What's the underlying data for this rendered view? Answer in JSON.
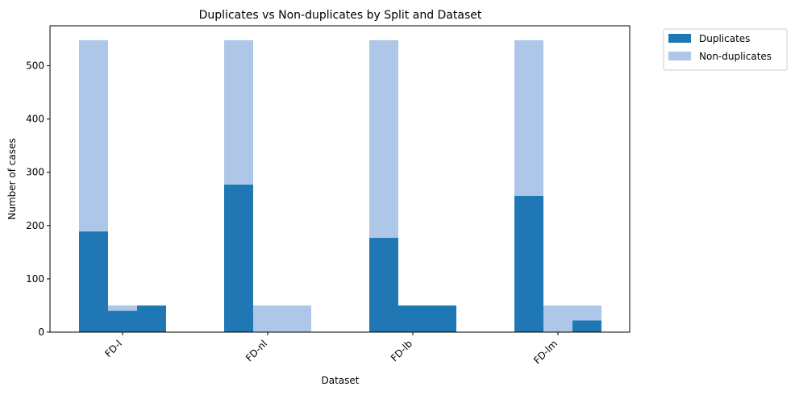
{
  "chart_data": {
    "type": "bar",
    "stacked": true,
    "title": "Duplicates vs Non-duplicates by Split and Dataset",
    "xlabel": "Dataset",
    "ylabel": "Number of cases",
    "categories": [
      "FD-l",
      "FD-nl",
      "FD-lb",
      "FD-lm"
    ],
    "bars_per_category": 3,
    "ylim": [
      0,
      575
    ],
    "yticks": [
      0,
      100,
      200,
      300,
      400,
      500
    ],
    "grid": false,
    "legend_position": "outside-top-right",
    "series": [
      {
        "name": "Duplicates",
        "color": "#1f77b4",
        "values": [
          [
            189,
            40,
            50
          ],
          [
            277,
            0,
            0
          ],
          [
            177,
            50,
            50
          ],
          [
            256,
            0,
            22
          ]
        ]
      },
      {
        "name": "Non-duplicates",
        "color": "#aec7e8",
        "values": [
          [
            359,
            10,
            0
          ],
          [
            271,
            50,
            50
          ],
          [
            371,
            0,
            0
          ],
          [
            292,
            50,
            28
          ]
        ]
      }
    ]
  }
}
